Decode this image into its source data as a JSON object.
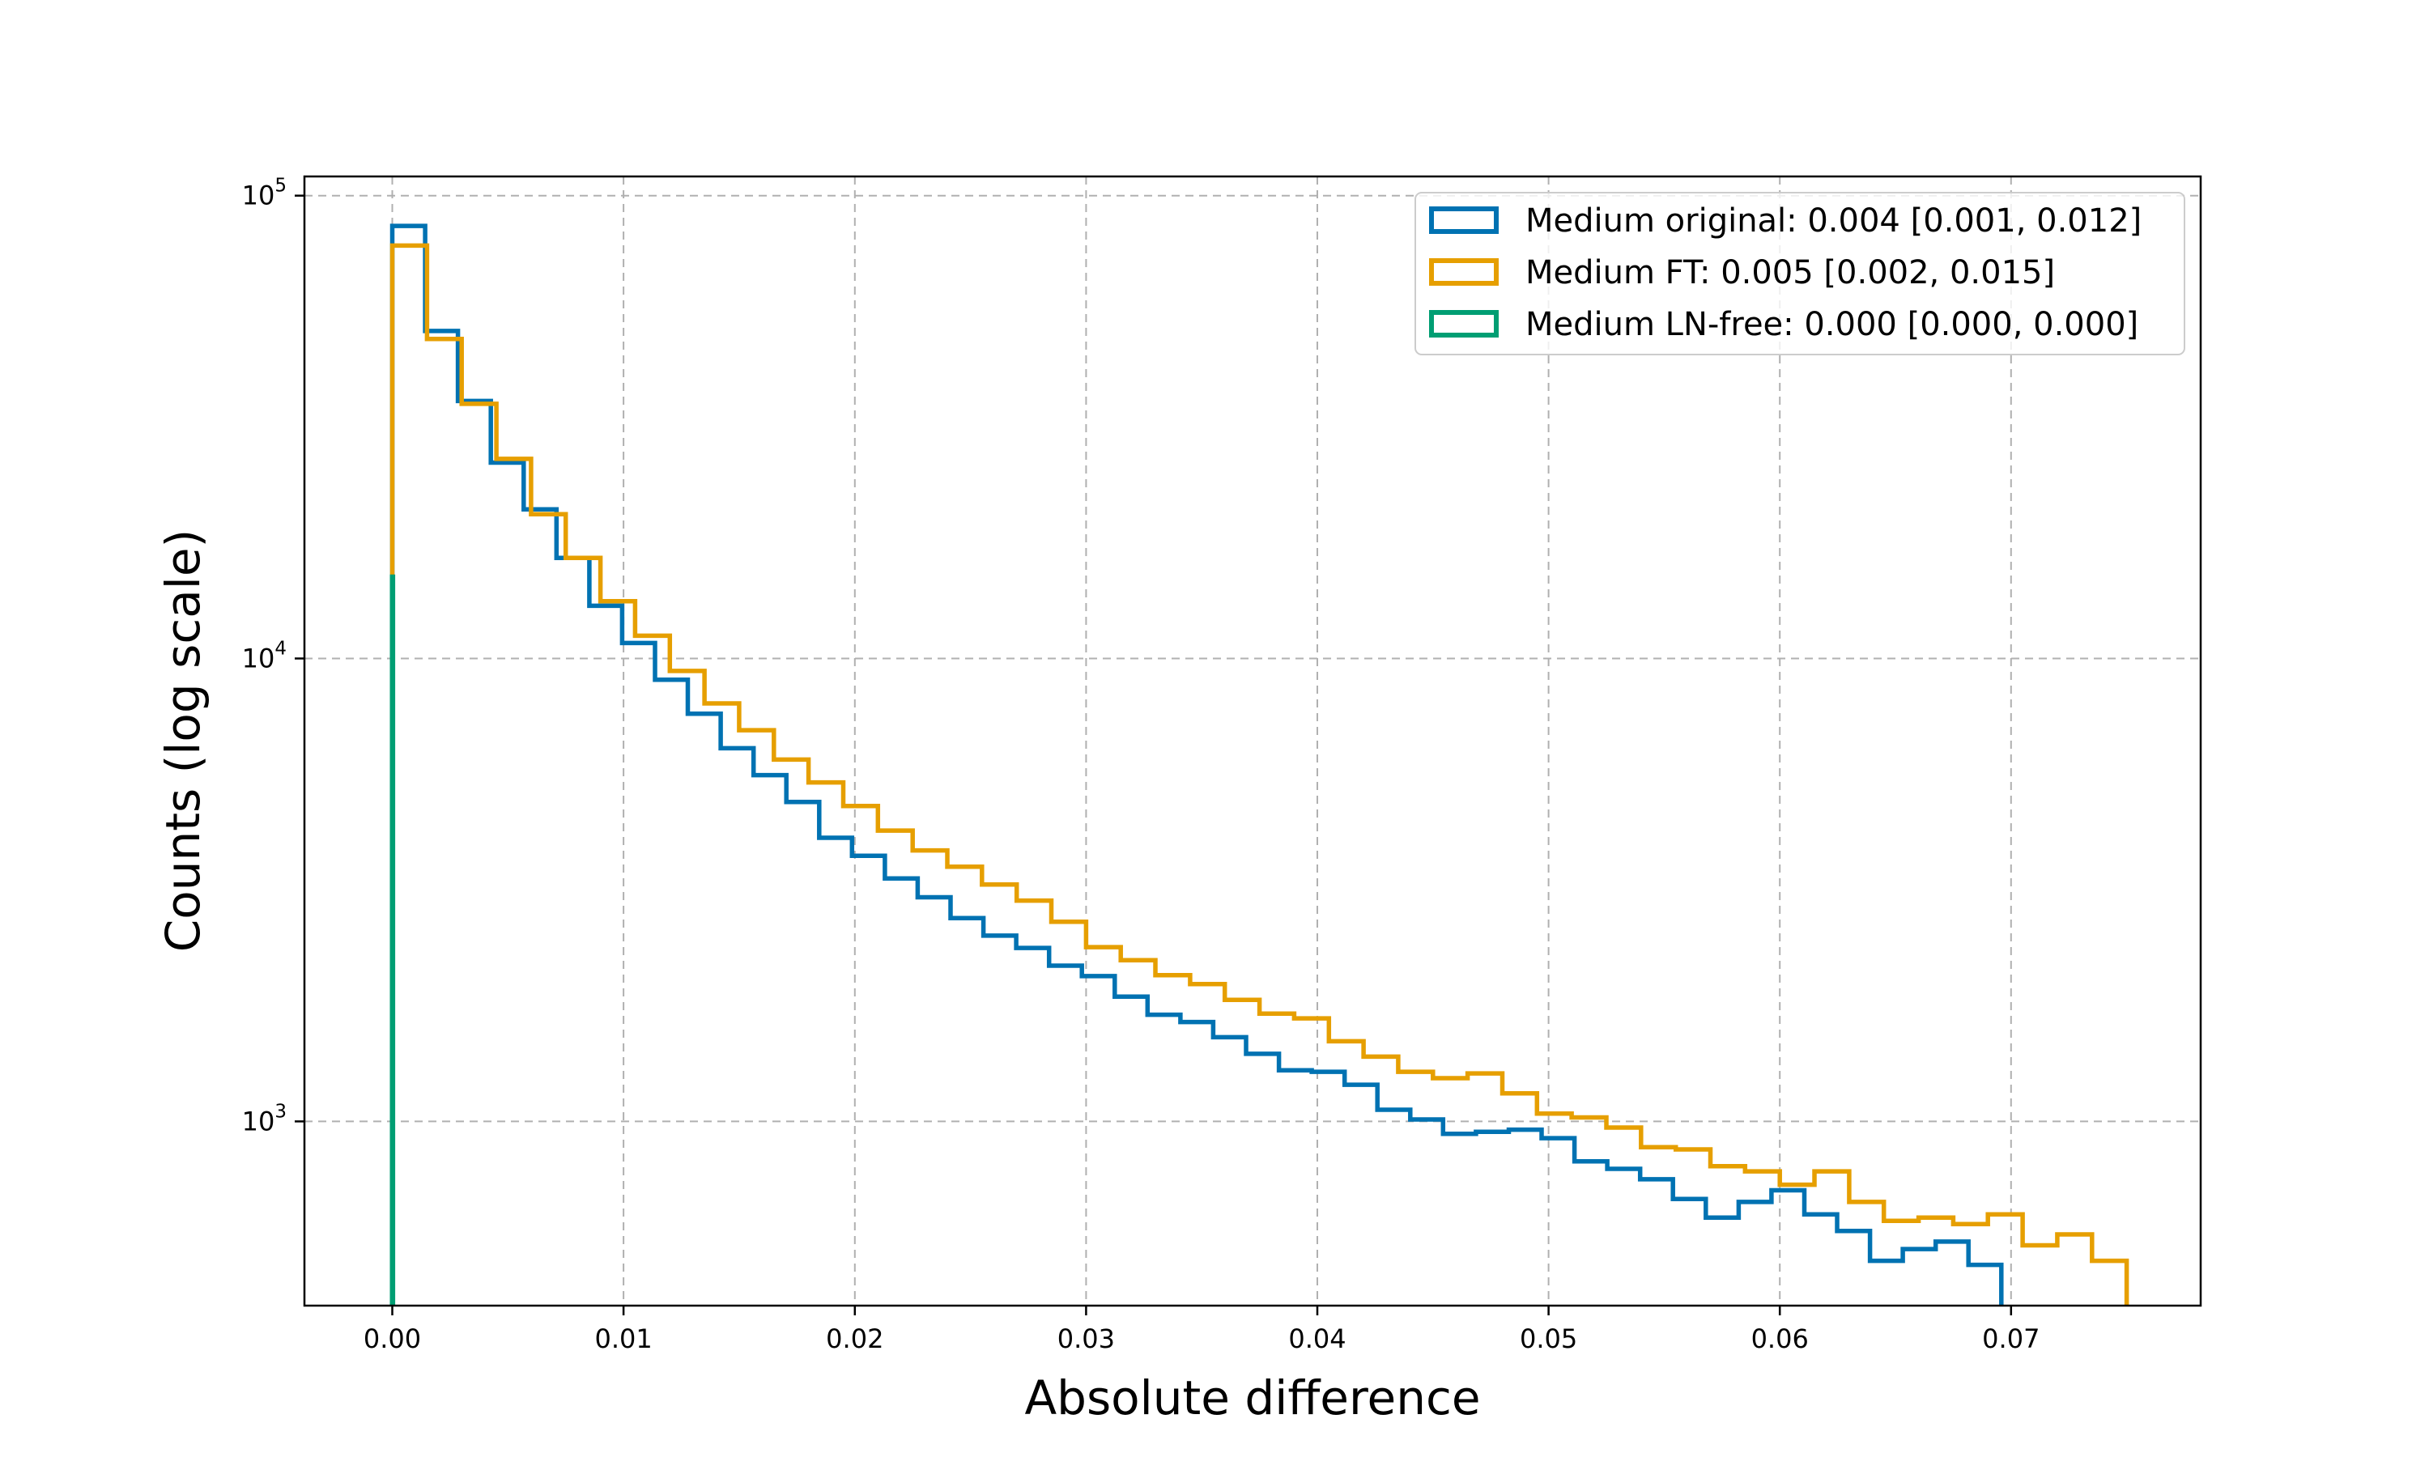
{
  "chart_data": {
    "type": "histogram",
    "xlabel": "Absolute difference",
    "ylabel": "Counts (log scale)",
    "yscale": "log",
    "xlim": [
      -0.0038,
      0.0782
    ],
    "ylim": [
      400,
      110000
    ],
    "grid": true,
    "legend_position": "top-right",
    "x_ticks": [
      0.0,
      0.01,
      0.02,
      0.03,
      0.04,
      0.05,
      0.06,
      0.07
    ],
    "x_tick_labels": [
      "0.00",
      "0.01",
      "0.02",
      "0.03",
      "0.04",
      "0.05",
      "0.06",
      "0.07"
    ],
    "y_ticks": [
      1000,
      10000,
      100000
    ],
    "y_tick_labels": [
      {
        "base": "10",
        "exp": "3"
      },
      {
        "base": "10",
        "exp": "4"
      },
      {
        "base": "10",
        "exp": "5"
      }
    ],
    "series": [
      {
        "name": "Medium original: 0.004 [0.001, 0.012]",
        "color": "#0072b2",
        "bin_start": 0.0,
        "bin_width": 0.00142,
        "values": [
          86000,
          51000,
          36000,
          26500,
          21000,
          16500,
          13000,
          10800,
          9000,
          7600,
          6400,
          5600,
          4900,
          4100,
          3750,
          3350,
          3050,
          2750,
          2520,
          2370,
          2170,
          2060,
          1860,
          1700,
          1640,
          1520,
          1400,
          1290,
          1280,
          1200,
          1060,
          1010,
          940,
          950,
          960,
          920,
          820,
          790,
          750,
          680,
          620,
          670,
          710,
          630,
          580,
          500,
          530,
          550,
          490
        ]
      },
      {
        "name": "Medium FT: 0.005 [0.002, 0.015]",
        "color": "#e69f00",
        "bin_start": 0.0,
        "bin_width": 0.0015,
        "values": [
          78000,
          49000,
          35500,
          27000,
          20500,
          16500,
          13300,
          11200,
          9400,
          8000,
          7000,
          6050,
          5400,
          4800,
          4250,
          3850,
          3550,
          3250,
          3000,
          2700,
          2380,
          2230,
          2070,
          1980,
          1830,
          1710,
          1670,
          1490,
          1380,
          1280,
          1240,
          1270,
          1150,
          1040,
          1020,
          970,
          880,
          870,
          800,
          780,
          730,
          780,
          670,
          610,
          620,
          600,
          630,
          540,
          570,
          500
        ]
      },
      {
        "name": "Medium LN-free: 0.000 [0.000, 0.000]",
        "color": "#009e73",
        "bin_start": 0.0,
        "bin_width": 2e-05,
        "values": [
          15000
        ]
      }
    ]
  }
}
